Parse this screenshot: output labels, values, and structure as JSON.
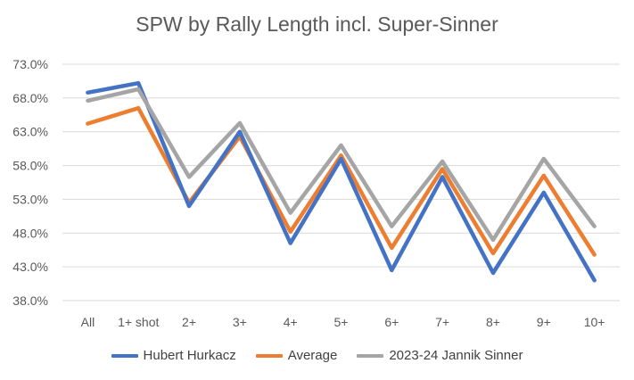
{
  "chart_data": {
    "type": "line",
    "title": "SPW by Rally Length incl. Super-Sinner",
    "xlabel": "",
    "ylabel": "",
    "categories": [
      "All",
      "1+ shot",
      "2+",
      "3+",
      "4+",
      "5+",
      "6+",
      "7+",
      "8+",
      "9+",
      "10+"
    ],
    "y_ticks": [
      "38.0%",
      "43.0%",
      "48.0%",
      "53.0%",
      "58.0%",
      "63.0%",
      "68.0%",
      "73.0%"
    ],
    "ylim": [
      38,
      73
    ],
    "grid": true,
    "legend_position": "bottom",
    "series": [
      {
        "name": "Hubert Hurkacz",
        "color": "#4472C4",
        "values": [
          68.8,
          70.2,
          52.0,
          63.0,
          46.5,
          59.0,
          42.5,
          56.3,
          42.1,
          54.0,
          41.0
        ]
      },
      {
        "name": "Average",
        "color": "#ED7D31",
        "values": [
          64.2,
          66.5,
          52.5,
          62.3,
          48.2,
          59.5,
          45.8,
          57.5,
          45.0,
          56.5,
          44.8
        ]
      },
      {
        "name": "2023-24 Jannik Sinner",
        "color": "#A5A5A5",
        "values": [
          67.6,
          69.3,
          56.3,
          64.3,
          51.0,
          61.0,
          49.0,
          58.6,
          47.0,
          59.0,
          49.0
        ]
      }
    ]
  }
}
